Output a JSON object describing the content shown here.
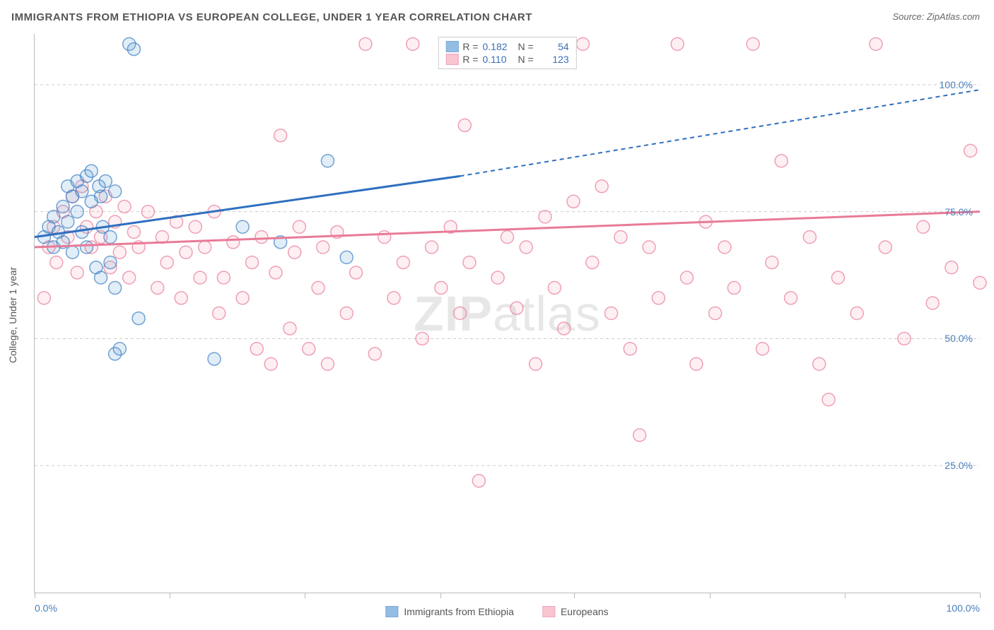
{
  "title": "IMMIGRANTS FROM ETHIOPIA VS EUROPEAN COLLEGE, UNDER 1 YEAR CORRELATION CHART",
  "source": "Source: ZipAtlas.com",
  "watermark_a": "ZIP",
  "watermark_b": "atlas",
  "ylabel": "College, Under 1 year",
  "chart": {
    "type": "scatter",
    "xlim": [
      0,
      100
    ],
    "ylim": [
      0,
      110
    ],
    "xticks": [
      0,
      14.3,
      28.6,
      42.9,
      57.1,
      71.4,
      85.7,
      100
    ],
    "xtick_labels": {
      "0": "0.0%",
      "100": "100.0%"
    },
    "yticks": [
      25,
      50,
      75,
      100
    ],
    "ytick_labels": [
      "25.0%",
      "50.0%",
      "75.0%",
      "100.0%"
    ],
    "grid_color": "#cccccc",
    "background_color": "#ffffff",
    "marker_radius": 9,
    "marker_stroke_width": 1.5,
    "marker_fill_opacity": 0.18
  },
  "series": {
    "ethiopia": {
      "label": "Immigrants from Ethiopia",
      "color": "#5b9bd5",
      "stroke": "#3a7ec2",
      "r_label": "R =",
      "r_value": "0.182",
      "n_label": "N =",
      "n_value": "54",
      "regression": {
        "x1": 0,
        "y1": 70,
        "x2": 45,
        "y2": 82,
        "x2_dash": 100,
        "y2_dash": 99
      },
      "points": [
        [
          1,
          70
        ],
        [
          1.5,
          72
        ],
        [
          2,
          68
        ],
        [
          2,
          74
        ],
        [
          2.5,
          71
        ],
        [
          3,
          76
        ],
        [
          3,
          69
        ],
        [
          3.5,
          80
        ],
        [
          3.5,
          73
        ],
        [
          4,
          78
        ],
        [
          4,
          67
        ],
        [
          4.5,
          81
        ],
        [
          4.5,
          75
        ],
        [
          5,
          79
        ],
        [
          5,
          71
        ],
        [
          5.5,
          82
        ],
        [
          5.5,
          68
        ],
        [
          6,
          77
        ],
        [
          6,
          83
        ],
        [
          6.8,
          80
        ],
        [
          6.5,
          64
        ],
        [
          7,
          78
        ],
        [
          7.2,
          72
        ],
        [
          7,
          62
        ],
        [
          7.5,
          81
        ],
        [
          8,
          70
        ],
        [
          8,
          65
        ],
        [
          8.5,
          79
        ],
        [
          8.5,
          60
        ],
        [
          9,
          48
        ],
        [
          8.5,
          47
        ],
        [
          10,
          108
        ],
        [
          10.5,
          107
        ],
        [
          11,
          54
        ],
        [
          19,
          46
        ],
        [
          22,
          72
        ],
        [
          26,
          69
        ],
        [
          31,
          85
        ],
        [
          33,
          66
        ]
      ]
    },
    "europeans": {
      "label": "Europeans",
      "color": "#f4a6b7",
      "stroke": "#e87b97",
      "r_label": "R =",
      "r_value": "0.110",
      "n_label": "N =",
      "n_value": "123",
      "regression": {
        "x1": 0,
        "y1": 68,
        "x2": 100,
        "y2": 75
      },
      "points": [
        [
          1,
          58
        ],
        [
          1.5,
          68
        ],
        [
          2,
          72
        ],
        [
          2.3,
          65
        ],
        [
          3,
          75
        ],
        [
          3.5,
          70
        ],
        [
          4,
          78
        ],
        [
          4.5,
          63
        ],
        [
          5,
          80
        ],
        [
          5.5,
          72
        ],
        [
          6,
          68
        ],
        [
          6.5,
          75
        ],
        [
          7,
          70
        ],
        [
          7.5,
          78
        ],
        [
          8,
          64
        ],
        [
          8.5,
          73
        ],
        [
          9,
          67
        ],
        [
          9.5,
          76
        ],
        [
          10,
          62
        ],
        [
          10.5,
          71
        ],
        [
          11,
          68
        ],
        [
          12,
          75
        ],
        [
          13,
          60
        ],
        [
          13.5,
          70
        ],
        [
          14,
          65
        ],
        [
          15,
          73
        ],
        [
          15.5,
          58
        ],
        [
          16,
          67
        ],
        [
          17,
          72
        ],
        [
          17.5,
          62
        ],
        [
          18,
          68
        ],
        [
          19,
          75
        ],
        [
          19.5,
          55
        ],
        [
          20,
          62
        ],
        [
          21,
          69
        ],
        [
          22,
          58
        ],
        [
          23,
          65
        ],
        [
          23.5,
          48
        ],
        [
          24,
          70
        ],
        [
          25,
          45
        ],
        [
          25.5,
          63
        ],
        [
          26,
          90
        ],
        [
          27,
          52
        ],
        [
          27.5,
          67
        ],
        [
          28,
          72
        ],
        [
          29,
          48
        ],
        [
          30,
          60
        ],
        [
          30.5,
          68
        ],
        [
          31,
          45
        ],
        [
          32,
          71
        ],
        [
          33,
          55
        ],
        [
          34,
          63
        ],
        [
          35,
          108
        ],
        [
          36,
          47
        ],
        [
          37,
          70
        ],
        [
          38,
          58
        ],
        [
          39,
          65
        ],
        [
          40,
          108
        ],
        [
          41,
          50
        ],
        [
          42,
          68
        ],
        [
          43,
          60
        ],
        [
          44,
          72
        ],
        [
          45,
          55
        ],
        [
          45.5,
          92
        ],
        [
          46,
          65
        ],
        [
          47,
          22
        ],
        [
          48,
          108
        ],
        [
          49,
          62
        ],
        [
          50,
          70
        ],
        [
          51,
          56
        ],
        [
          52,
          68
        ],
        [
          53,
          45
        ],
        [
          54,
          74
        ],
        [
          55,
          60
        ],
        [
          56,
          52
        ],
        [
          57,
          77
        ],
        [
          58,
          108
        ],
        [
          59,
          65
        ],
        [
          60,
          80
        ],
        [
          61,
          55
        ],
        [
          62,
          70
        ],
        [
          63,
          48
        ],
        [
          64,
          31
        ],
        [
          65,
          68
        ],
        [
          66,
          58
        ],
        [
          68,
          108
        ],
        [
          69,
          62
        ],
        [
          70,
          45
        ],
        [
          71,
          73
        ],
        [
          72,
          55
        ],
        [
          73,
          68
        ],
        [
          74,
          60
        ],
        [
          76,
          108
        ],
        [
          77,
          48
        ],
        [
          78,
          65
        ],
        [
          79,
          85
        ],
        [
          80,
          58
        ],
        [
          82,
          70
        ],
        [
          83,
          45
        ],
        [
          84,
          38
        ],
        [
          85,
          62
        ],
        [
          87,
          55
        ],
        [
          89,
          108
        ],
        [
          90,
          68
        ],
        [
          92,
          50
        ],
        [
          94,
          72
        ],
        [
          95,
          57
        ],
        [
          97,
          64
        ],
        [
          99,
          87
        ],
        [
          100,
          61
        ]
      ]
    }
  }
}
